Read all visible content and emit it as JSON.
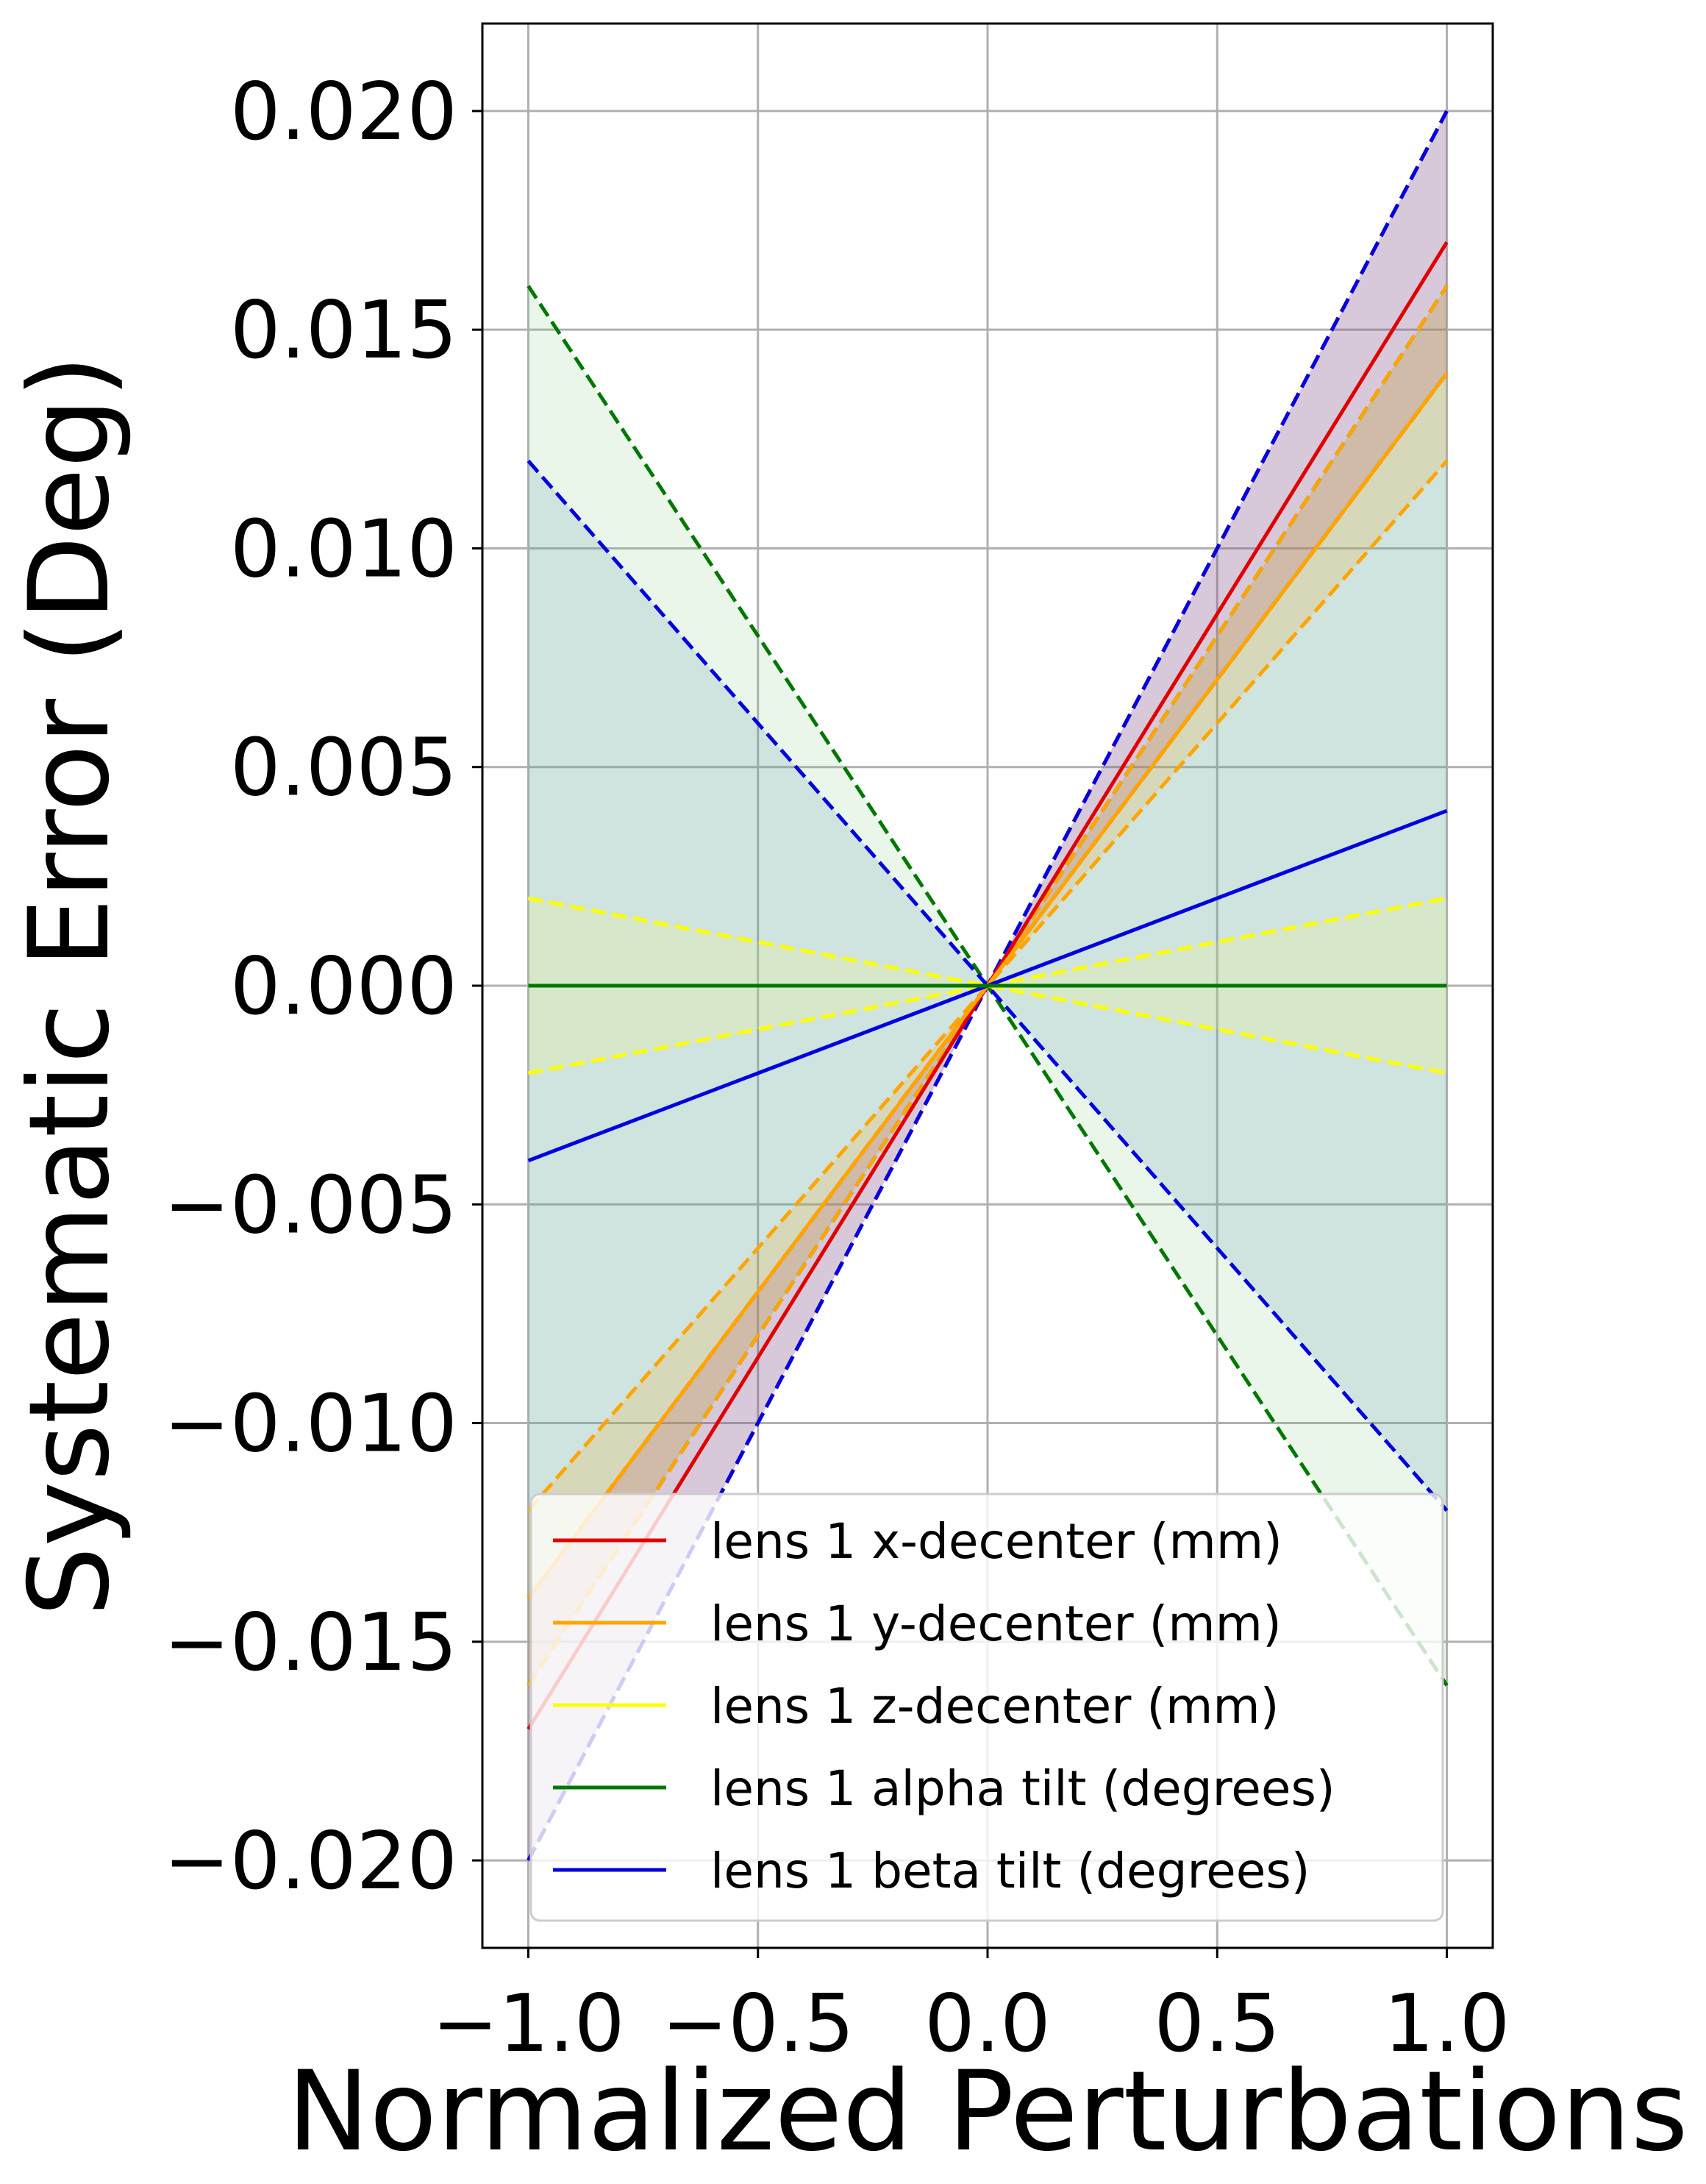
{
  "chart_data": {
    "type": "line",
    "xlabel": "Normalized Perturbations",
    "ylabel": "Systematic Error (Deg)",
    "xlim": [
      -1.1,
      1.1
    ],
    "ylim": [
      -0.022,
      0.022
    ],
    "grid": true,
    "legend_position": "lower-center",
    "x_ticks": [
      -1.0,
      -0.5,
      0.0,
      0.5,
      1.0
    ],
    "x_tick_labels": [
      "−1.0",
      "−0.5",
      "0.0",
      "0.5",
      "1.0"
    ],
    "y_ticks": [
      0.02,
      0.015,
      0.01,
      0.005,
      0.0,
      -0.005,
      -0.01,
      -0.015,
      -0.02
    ],
    "y_tick_labels": [
      "0.020",
      "0.015",
      "0.010",
      "0.005",
      "0.000",
      "−0.005",
      "−0.010",
      "−0.015",
      "−0.020"
    ],
    "series": [
      {
        "name": "lens 1 x-decenter (mm)",
        "color": "#e00000",
        "x": [
          -1.0,
          0.0,
          1.0
        ],
        "y": [
          -0.017,
          0.0,
          0.017
        ],
        "band_upper": [
          -0.014,
          0.0,
          0.014
        ],
        "band_lower": [
          -0.02,
          0.0,
          0.02
        ],
        "fill": "#b03060"
      },
      {
        "name": "lens 1 y-decenter (mm)",
        "color": "#ffa500",
        "x": [
          -1.0,
          0.0,
          1.0
        ],
        "y": [
          -0.014,
          0.0,
          0.014
        ],
        "band_upper": [
          -0.012,
          0.0,
          0.012
        ],
        "band_lower": [
          -0.016,
          0.0,
          0.016
        ],
        "fill": "#ffa500"
      },
      {
        "name": "lens 1 z-decenter (mm)",
        "color": "#ffff00",
        "x": [
          -1.0,
          0.0,
          1.0
        ],
        "y": [
          0.0,
          0.0,
          0.0
        ],
        "band_upper": [
          0.002,
          0.0,
          -0.002
        ],
        "band_lower": [
          -0.002,
          0.0,
          0.002
        ],
        "fill": "#ffff66"
      },
      {
        "name": "lens 1 alpha tilt (degrees)",
        "color": "#007800",
        "x": [
          -1.0,
          0.0,
          1.0
        ],
        "y": [
          0.0,
          0.0,
          0.0
        ],
        "band_upper": [
          0.016,
          0.0,
          -0.016
        ],
        "band_lower": [
          -0.016,
          0.0,
          0.016
        ],
        "fill": "#7cc87c"
      },
      {
        "name": "lens 1 beta tilt (degrees)",
        "color": "#0000e0",
        "x": [
          -1.0,
          0.0,
          1.0
        ],
        "y": [
          -0.004,
          0.0,
          0.004
        ],
        "band_upper": [
          0.012,
          0.0,
          -0.012
        ],
        "band_lower": [
          -0.02,
          0.0,
          0.02
        ],
        "fill": "#4a78b8"
      }
    ]
  }
}
